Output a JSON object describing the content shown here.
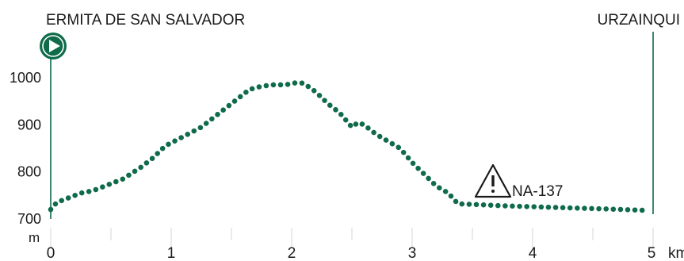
{
  "start_label": "ERMITA DE SAN SALVADOR",
  "end_label": "URZAINQUI",
  "warning_label": "NA-137",
  "start_icon": "play-icon",
  "warning_icon": "warning-triangle-icon",
  "colors": {
    "profile": "#0f6b4a",
    "ticks": "#cfd8d4",
    "text": "#1a1a1a"
  },
  "chart_data": {
    "type": "line",
    "x_unit": "km",
    "y_unit": "m",
    "xlim": [
      0,
      5
    ],
    "ylim": [
      700,
      1000
    ],
    "x_ticks": [
      0,
      1,
      2,
      3,
      4,
      5
    ],
    "x_tick_labels": [
      "0",
      "1",
      "2",
      "3",
      "4",
      "5"
    ],
    "y_ticks": [
      700,
      800,
      900,
      1000
    ],
    "y_tick_labels": [
      "700",
      "800",
      "900",
      "1000"
    ],
    "series": [
      {
        "points": [
          [
            0.0,
            720
          ],
          [
            0.05,
            735
          ],
          [
            0.15,
            745
          ],
          [
            0.25,
            755
          ],
          [
            0.35,
            760
          ],
          [
            0.5,
            775
          ],
          [
            0.6,
            785
          ],
          [
            0.75,
            810
          ],
          [
            0.85,
            830
          ],
          [
            0.95,
            855
          ],
          [
            1.1,
            875
          ],
          [
            1.25,
            895
          ],
          [
            1.4,
            925
          ],
          [
            1.55,
            955
          ],
          [
            1.65,
            975
          ],
          [
            1.75,
            982
          ],
          [
            1.85,
            985
          ],
          [
            1.95,
            985
          ],
          [
            2.05,
            990
          ],
          [
            2.1,
            988
          ],
          [
            2.2,
            970
          ],
          [
            2.3,
            945
          ],
          [
            2.4,
            925
          ],
          [
            2.5,
            895
          ],
          [
            2.55,
            905
          ],
          [
            2.6,
            900
          ],
          [
            2.7,
            880
          ],
          [
            2.8,
            865
          ],
          [
            2.9,
            850
          ],
          [
            3.0,
            820
          ],
          [
            3.1,
            795
          ],
          [
            3.2,
            770
          ],
          [
            3.3,
            755
          ],
          [
            3.38,
            732
          ],
          [
            3.5,
            731
          ],
          [
            3.75,
            728
          ],
          [
            4.0,
            726
          ],
          [
            4.25,
            724
          ],
          [
            4.5,
            722
          ],
          [
            4.75,
            720
          ],
          [
            4.95,
            718
          ]
        ]
      }
    ],
    "annotations": [
      {
        "text": "NA-137",
        "x": 3.55,
        "y": 750,
        "icon": "warning"
      }
    ]
  }
}
